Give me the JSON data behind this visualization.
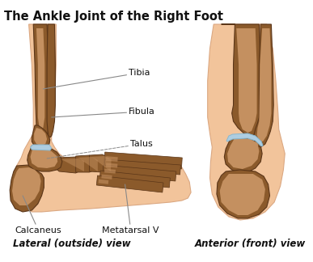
{
  "title": "The Ankle Joint of the Right Foot",
  "title_fontsize": 10.5,
  "title_fontweight": "bold",
  "background_color": "#ffffff",
  "skin_color": "#f2c49b",
  "bone_dark_outline": "#5a3518",
  "bone_mid": "#8B5A2B",
  "bone_light": "#c49060",
  "cartilage_color": "#aecde0",
  "label_color": "#111111",
  "line_color": "#888888",
  "view_label_lateral": "Lateral (outside) view",
  "view_label_anterior": "Anterior (front) view",
  "view_label_fontsize": 8.5
}
